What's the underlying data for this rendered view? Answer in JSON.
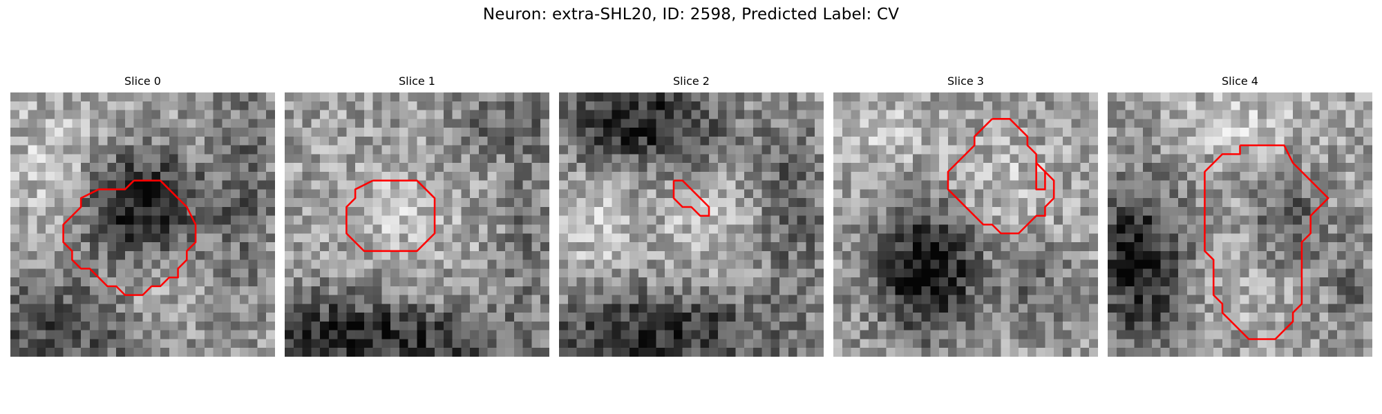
{
  "figure": {
    "title": "Neuron: extra-SHL20, ID: 2598, Predicted Label: CV"
  },
  "colors": {
    "contour": "#ff0000",
    "background": "#ffffff"
  },
  "grid": {
    "cells": 30
  },
  "panels": [
    {
      "title": "Slice 0",
      "seed": 11,
      "blobs": [
        {
          "cx": 14,
          "cy": 12,
          "rx": 7,
          "ry": 6,
          "amp": -0.55
        },
        {
          "cx": 5,
          "cy": 26,
          "rx": 10,
          "ry": 6,
          "amp": -0.35
        },
        {
          "cx": 26,
          "cy": 10,
          "rx": 4,
          "ry": 14,
          "amp": -0.2
        },
        {
          "cx": 5,
          "cy": 8,
          "rx": 6,
          "ry": 7,
          "amp": 0.18
        },
        {
          "cx": 15,
          "cy": 23,
          "rx": 6,
          "ry": 3,
          "amp": 0.12
        }
      ],
      "contours": [
        [
          [
            14,
            10
          ],
          [
            17,
            10
          ],
          [
            20,
            13
          ],
          [
            21,
            15
          ],
          [
            21,
            17
          ],
          [
            20,
            18
          ],
          [
            20,
            19
          ],
          [
            19,
            20
          ],
          [
            19,
            21
          ],
          [
            18,
            21
          ],
          [
            17,
            22
          ],
          [
            16,
            22
          ],
          [
            15,
            23
          ],
          [
            13,
            23
          ],
          [
            12,
            22
          ],
          [
            11,
            22
          ],
          [
            9,
            20
          ],
          [
            8,
            20
          ],
          [
            7,
            19
          ],
          [
            7,
            18
          ],
          [
            6,
            17
          ],
          [
            6,
            15
          ],
          [
            7,
            14
          ],
          [
            8,
            13
          ],
          [
            8,
            12
          ],
          [
            10,
            11
          ],
          [
            13,
            11
          ],
          [
            14,
            10
          ]
        ]
      ]
    },
    {
      "title": "Slice 1",
      "seed": 23,
      "blobs": [
        {
          "cx": 5,
          "cy": 27,
          "rx": 9,
          "ry": 5,
          "amp": -0.42
        },
        {
          "cx": 18,
          "cy": 28,
          "rx": 10,
          "ry": 4,
          "amp": -0.32
        },
        {
          "cx": 24,
          "cy": 3,
          "rx": 6,
          "ry": 4,
          "amp": -0.22
        },
        {
          "cx": 27,
          "cy": 16,
          "rx": 3,
          "ry": 10,
          "amp": -0.18
        },
        {
          "cx": 12,
          "cy": 13,
          "rx": 6,
          "ry": 5,
          "amp": 0.15
        }
      ],
      "contours": [
        [
          [
            10,
            10
          ],
          [
            15,
            10
          ],
          [
            17,
            12
          ],
          [
            17,
            16
          ],
          [
            15,
            18
          ],
          [
            9,
            18
          ],
          [
            7,
            16
          ],
          [
            7,
            13
          ],
          [
            8,
            12
          ],
          [
            8,
            11
          ],
          [
            10,
            10
          ]
        ]
      ]
    },
    {
      "title": "Slice 2",
      "seed": 37,
      "blobs": [
        {
          "cx": 9,
          "cy": 3,
          "rx": 9,
          "ry": 5,
          "amp": -0.5
        },
        {
          "cx": 11,
          "cy": 27,
          "rx": 14,
          "ry": 5,
          "amp": -0.45
        },
        {
          "cx": 26,
          "cy": 12,
          "rx": 4,
          "ry": 11,
          "amp": -0.25
        },
        {
          "cx": 16,
          "cy": 15,
          "rx": 6,
          "ry": 5,
          "amp": 0.12
        },
        {
          "cx": 4,
          "cy": 15,
          "rx": 4,
          "ry": 5,
          "amp": 0.15
        }
      ],
      "contours": [
        [
          [
            13,
            10
          ],
          [
            14,
            10
          ],
          [
            16,
            12
          ],
          [
            17,
            13
          ],
          [
            17,
            14
          ],
          [
            16,
            14
          ],
          [
            15,
            13
          ],
          [
            14,
            13
          ],
          [
            13,
            12
          ],
          [
            13,
            10
          ]
        ]
      ]
    },
    {
      "title": "Slice 3",
      "seed": 53,
      "blobs": [
        {
          "cx": 10,
          "cy": 20,
          "rx": 6,
          "ry": 7,
          "amp": -0.6
        },
        {
          "cx": 23,
          "cy": 22,
          "rx": 4,
          "ry": 5,
          "amp": -0.2
        },
        {
          "cx": 4,
          "cy": 4,
          "rx": 6,
          "ry": 5,
          "amp": 0.15
        },
        {
          "cx": 19,
          "cy": 10,
          "rx": 6,
          "ry": 5,
          "amp": 0.12
        }
      ],
      "contours": [
        [
          [
            18,
            3
          ],
          [
            20,
            3
          ],
          [
            22,
            5
          ],
          [
            22,
            6
          ],
          [
            23,
            7
          ],
          [
            23,
            8
          ],
          [
            25,
            10
          ],
          [
            25,
            12
          ],
          [
            24,
            13
          ],
          [
            24,
            14
          ],
          [
            23,
            14
          ],
          [
            22,
            15
          ],
          [
            21,
            16
          ],
          [
            19,
            16
          ],
          [
            18,
            15
          ],
          [
            17,
            15
          ],
          [
            16,
            14
          ],
          [
            15,
            13
          ],
          [
            14,
            12
          ],
          [
            13,
            11
          ],
          [
            13,
            9
          ],
          [
            15,
            7
          ],
          [
            16,
            6
          ],
          [
            16,
            5
          ],
          [
            17,
            4
          ],
          [
            18,
            3
          ]
        ],
        [
          [
            23,
            8
          ],
          [
            24,
            9
          ],
          [
            24,
            11
          ],
          [
            23,
            11
          ],
          [
            23,
            8
          ]
        ]
      ]
    },
    {
      "title": "Slice 4",
      "seed": 71,
      "blobs": [
        {
          "cx": 3,
          "cy": 19,
          "rx": 5,
          "ry": 9,
          "amp": -0.55
        },
        {
          "cx": 20,
          "cy": 14,
          "rx": 4,
          "ry": 5,
          "amp": -0.3
        },
        {
          "cx": 27,
          "cy": 22,
          "rx": 3,
          "ry": 7,
          "amp": -0.18
        },
        {
          "cx": 14,
          "cy": 3,
          "rx": 8,
          "ry": 4,
          "amp": 0.15
        },
        {
          "cx": 15,
          "cy": 20,
          "rx": 4,
          "ry": 6,
          "amp": 0.08
        }
      ],
      "contours": [
        [
          [
            15,
            6
          ],
          [
            20,
            6
          ],
          [
            21,
            8
          ],
          [
            25,
            12
          ],
          [
            24,
            13
          ],
          [
            23,
            14
          ],
          [
            23,
            16
          ],
          [
            22,
            17
          ],
          [
            22,
            24
          ],
          [
            21,
            25
          ],
          [
            21,
            26
          ],
          [
            19,
            28
          ],
          [
            16,
            28
          ],
          [
            13,
            25
          ],
          [
            13,
            24
          ],
          [
            12,
            23
          ],
          [
            12,
            19
          ],
          [
            11,
            18
          ],
          [
            11,
            9
          ],
          [
            13,
            7
          ],
          [
            15,
            7
          ],
          [
            15,
            6
          ]
        ]
      ]
    }
  ]
}
